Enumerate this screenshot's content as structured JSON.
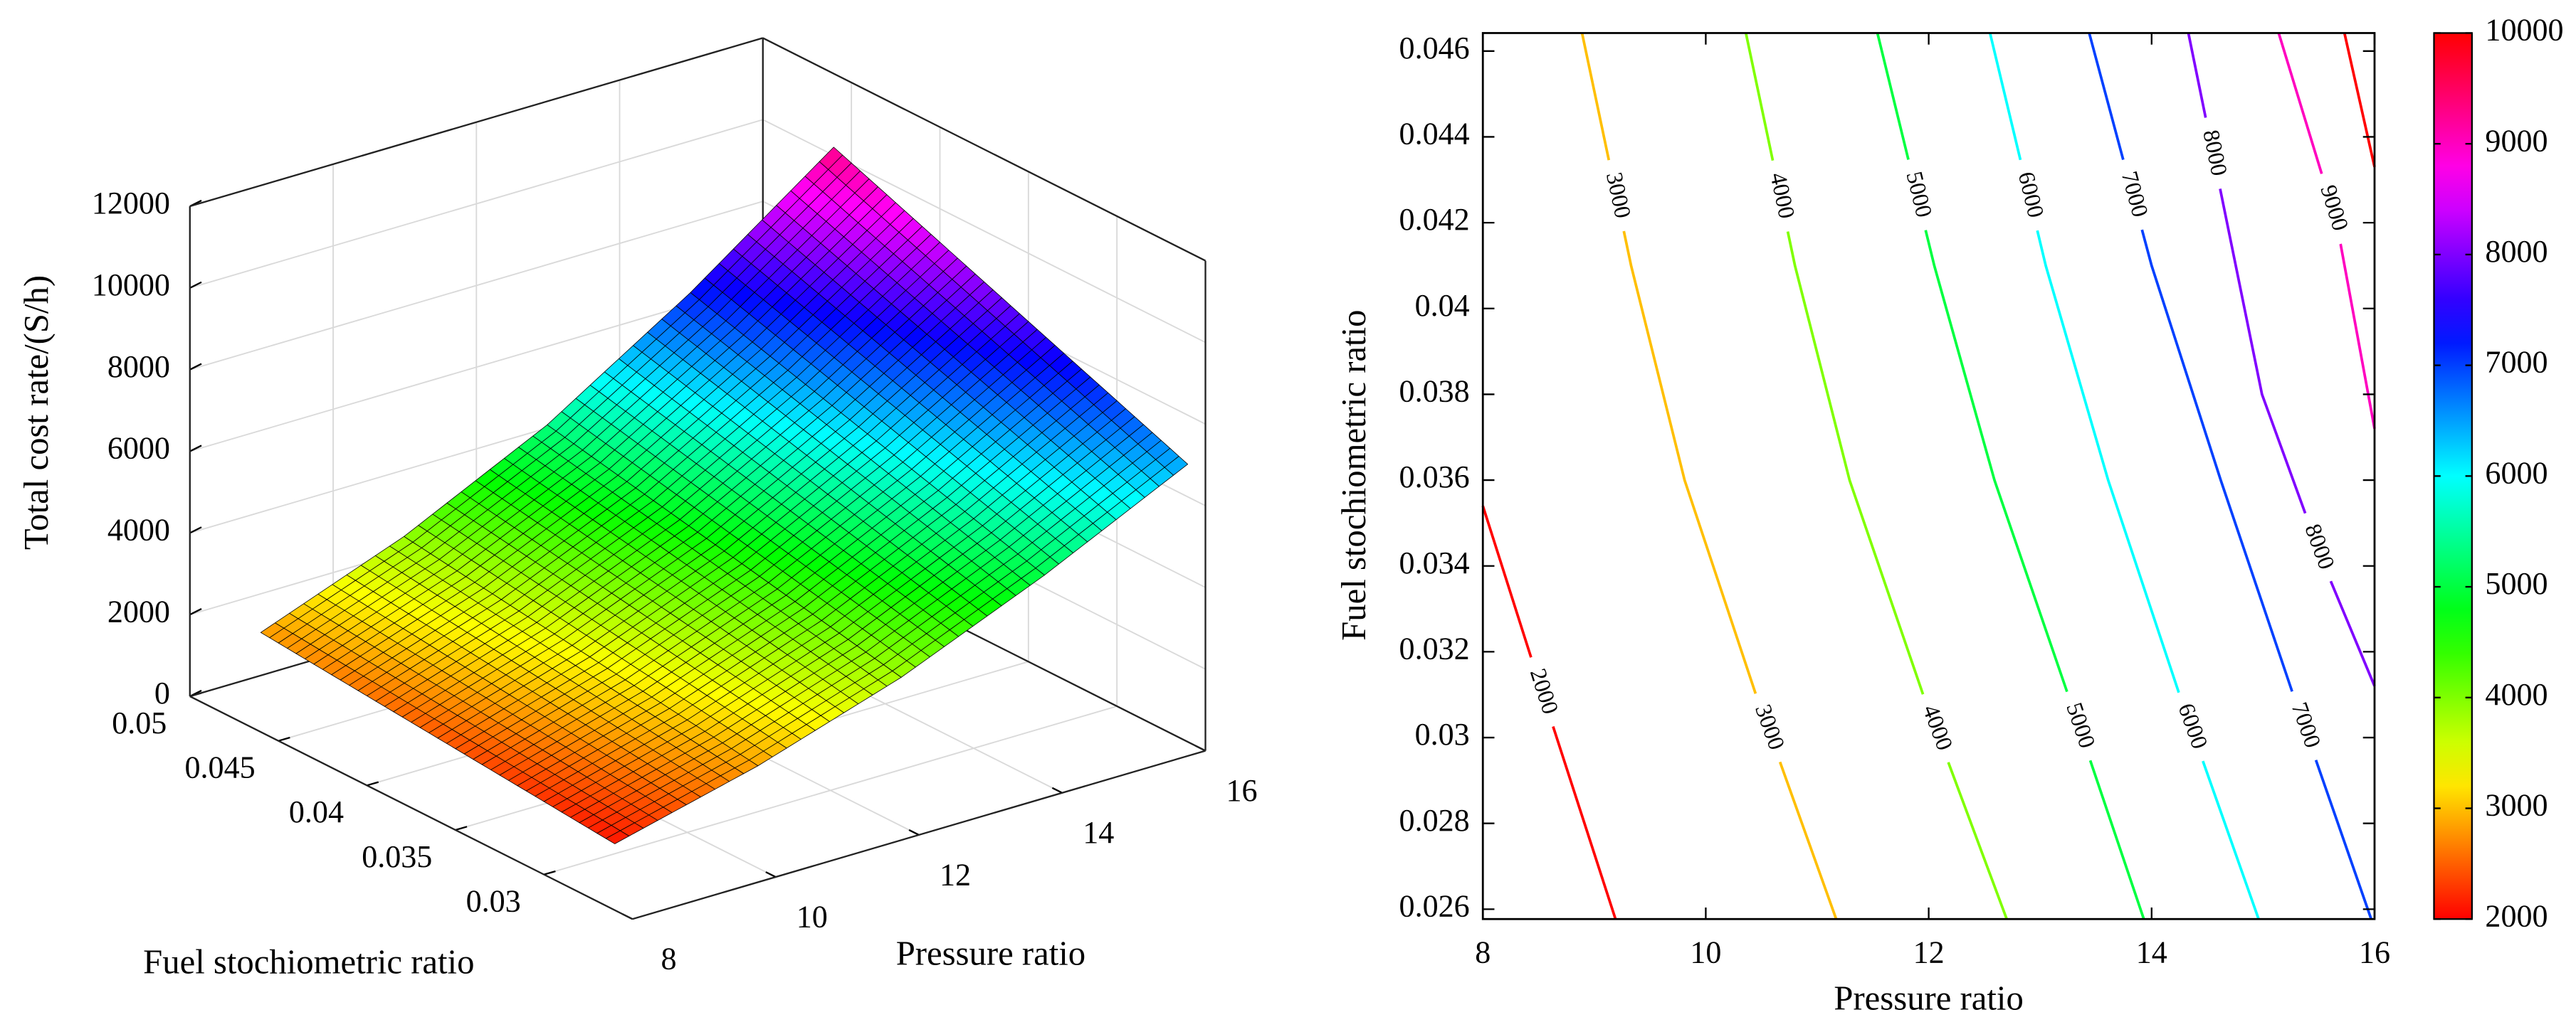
{
  "chart_data": [
    {
      "type": "surface",
      "xlabel": "Pressure ratio",
      "ylabel": "Fuel stochiometric ratio",
      "zlabel": "Total cost rate/(S/h)",
      "x": [
        8,
        10,
        12,
        14,
        16
      ],
      "y": [
        0.026,
        0.031,
        0.036,
        0.041,
        0.046
      ],
      "z": [
        [
          1624,
          2504,
          3640,
          5112,
          6800
        ],
        [
          1827,
          2817,
          4095,
          5751,
          7650
        ],
        [
          2030,
          3130,
          4550,
          6390,
          8500
        ],
        [
          2233,
          3443,
          5005,
          7029,
          9350
        ],
        [
          2436,
          3756,
          5460,
          7668,
          10200
        ]
      ],
      "xlim": [
        8,
        16
      ],
      "ylim": [
        0.025,
        0.05
      ],
      "zlim": [
        0,
        12000
      ],
      "xticks": [
        8,
        10,
        12,
        14,
        16
      ],
      "yticks": [
        0.03,
        0.035,
        0.04,
        0.045,
        0.05
      ],
      "zticks": [
        0,
        2000,
        4000,
        6000,
        8000,
        10000,
        12000
      ],
      "grid": true,
      "colormap": "hsv",
      "clim": [
        1500,
        11000
      ]
    },
    {
      "type": "contour",
      "xlabel": "Pressure ratio",
      "ylabel": "Fuel stochiometric ratio",
      "lines": [
        {
          "level": 2000,
          "x": [
            8,
            8.6,
            9.19
          ],
          "y": [
            0.0354,
            0.0305,
            0.02577
          ]
        },
        {
          "level": 3000,
          "x": [
            8.89,
            9.33,
            9.81,
            10.45,
            11.17
          ],
          "y": [
            0.04642,
            0.041,
            0.036,
            0.031,
            0.02577
          ]
        },
        {
          "level": 4000,
          "x": [
            10.36,
            10.8,
            11.29,
            11.95,
            12.7
          ],
          "y": [
            0.04642,
            0.041,
            0.036,
            0.031,
            0.02577
          ]
        },
        {
          "level": 5000,
          "x": [
            11.54,
            12.05,
            12.59,
            13.25,
            13.93
          ],
          "y": [
            0.04642,
            0.041,
            0.036,
            0.031,
            0.02577
          ]
        },
        {
          "level": 6000,
          "x": [
            12.55,
            13.05,
            13.61,
            14.25,
            14.96
          ],
          "y": [
            0.04642,
            0.041,
            0.036,
            0.031,
            0.02577
          ]
        },
        {
          "level": 7000,
          "x": [
            13.44,
            14.0,
            14.62,
            15.27,
            15.97
          ],
          "y": [
            0.04642,
            0.041,
            0.036,
            0.031,
            0.02577
          ]
        },
        {
          "level": 8000,
          "x": [
            14.33,
            14.99,
            15.55,
            16
          ],
          "y": [
            0.04642,
            0.038,
            0.034,
            0.0312
          ]
        },
        {
          "level": 9000,
          "x": [
            15.14,
            15.66,
            16
          ],
          "y": [
            0.04642,
            0.042,
            0.0372
          ]
        },
        {
          "level": 10000,
          "x": [
            15.73,
            16
          ],
          "y": [
            0.04642,
            0.0433
          ]
        }
      ],
      "xlim": [
        8,
        16
      ],
      "ylim": [
        0.02577,
        0.04642
      ],
      "xticks": [
        8,
        10,
        12,
        14,
        16
      ],
      "yticks": [
        0.026,
        0.028,
        0.03,
        0.032,
        0.034,
        0.036,
        0.038,
        0.04,
        0.042,
        0.044,
        0.046
      ],
      "colormap": "hsv",
      "clim": [
        2000,
        10000
      ],
      "colorbar_ticks": [
        2000,
        3000,
        4000,
        5000,
        6000,
        7000,
        8000,
        9000,
        10000
      ]
    }
  ]
}
